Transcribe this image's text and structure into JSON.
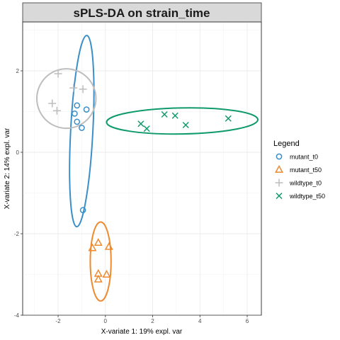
{
  "chart_data": {
    "type": "scatter",
    "title": "sPLS-DA on strain_time",
    "xlabel": "X-variate 1: 19% expl. var",
    "ylabel": "X-variate 2: 14% expl. var",
    "xlim": [
      -3.5,
      6.6
    ],
    "ylim": [
      -4.0,
      3.2
    ],
    "xticks": [
      -2,
      0,
      2,
      4,
      6
    ],
    "yticks": [
      -4,
      -2,
      0,
      2
    ],
    "grid": true,
    "legend": {
      "title": "Legend",
      "position": "right"
    },
    "series": [
      {
        "name": "mutant_t0",
        "marker": "circle",
        "color": "#3a8fc9",
        "points": [
          [
            -1.2,
            1.15
          ],
          [
            -1.3,
            0.95
          ],
          [
            -1.2,
            0.75
          ],
          [
            -0.8,
            1.05
          ],
          [
            -1.0,
            0.6
          ],
          [
            -0.95,
            -1.42
          ]
        ],
        "ellipse": {
          "cx": -1.0,
          "cy": 0.52,
          "rx": 0.47,
          "ry": 2.35,
          "angle": 3
        }
      },
      {
        "name": "mutant_t50",
        "marker": "triangle",
        "color": "#ef8a2e",
        "points": [
          [
            -0.3,
            -2.22
          ],
          [
            -0.55,
            -2.35
          ],
          [
            0.15,
            -2.32
          ],
          [
            -0.3,
            -2.98
          ],
          [
            -0.3,
            -3.12
          ],
          [
            0.05,
            -3.0
          ]
        ],
        "ellipse": {
          "cx": -0.2,
          "cy": -2.68,
          "rx": 0.44,
          "ry": 0.97,
          "angle": 0
        }
      },
      {
        "name": "wildtype_t0",
        "marker": "plus",
        "color": "#bdbdbd",
        "points": [
          [
            -2.0,
            1.93
          ],
          [
            -2.25,
            1.2
          ],
          [
            -2.05,
            1.02
          ],
          [
            -1.35,
            1.58
          ],
          [
            -0.95,
            1.55
          ]
        ],
        "ellipse": {
          "cx": -1.65,
          "cy": 1.32,
          "rx": 1.25,
          "ry": 0.73,
          "angle": 0
        }
      },
      {
        "name": "wildtype_t50",
        "marker": "x",
        "color": "#0f9a6e",
        "points": [
          [
            1.5,
            0.7
          ],
          [
            1.75,
            0.58
          ],
          [
            2.5,
            0.93
          ],
          [
            2.95,
            0.9
          ],
          [
            3.4,
            0.67
          ],
          [
            5.2,
            0.83
          ]
        ],
        "ellipse": {
          "cx": 3.25,
          "cy": 0.77,
          "rx": 3.2,
          "ry": 0.32,
          "angle": -1
        }
      }
    ]
  }
}
